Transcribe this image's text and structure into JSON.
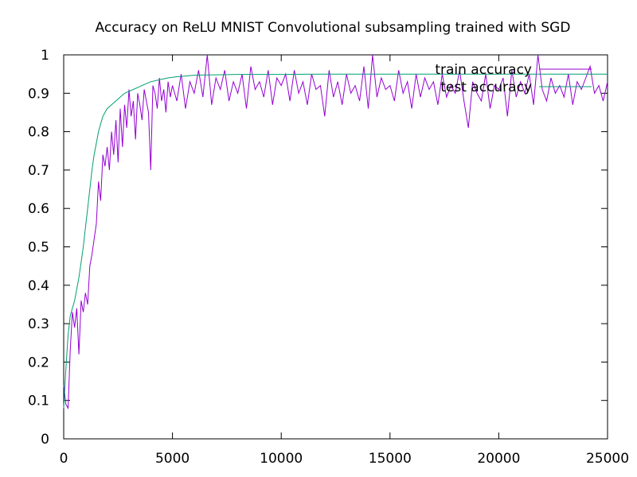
{
  "chart_data": {
    "type": "line",
    "title": "Accuracy on ReLU MNIST Convolutional subsampling trained with SGD",
    "xlabel": "",
    "ylabel": "",
    "xlim": [
      0,
      25000
    ],
    "ylim": [
      0,
      1
    ],
    "x_ticks": [
      0,
      5000,
      10000,
      15000,
      20000,
      25000
    ],
    "y_ticks": [
      0,
      0.1,
      0.2,
      0.3,
      0.4,
      0.5,
      0.6,
      0.7,
      0.8,
      0.9,
      1
    ],
    "grid": false,
    "legend_position": "top-right",
    "series": [
      {
        "name": "train accuracy",
        "color": "#9400d3",
        "x": [
          0,
          100,
          200,
          300,
          400,
          500,
          600,
          700,
          800,
          900,
          1000,
          1100,
          1200,
          1300,
          1400,
          1500,
          1600,
          1700,
          1800,
          1900,
          2000,
          2100,
          2200,
          2300,
          2400,
          2500,
          2600,
          2700,
          2800,
          2900,
          3000,
          3100,
          3200,
          3300,
          3400,
          3500,
          3600,
          3700,
          3800,
          3900,
          4000,
          4100,
          4200,
          4300,
          4400,
          4500,
          4600,
          4700,
          4800,
          4900,
          5000,
          5200,
          5400,
          5600,
          5800,
          6000,
          6200,
          6400,
          6600,
          6800,
          7000,
          7200,
          7400,
          7600,
          7800,
          8000,
          8200,
          8400,
          8600,
          8800,
          9000,
          9200,
          9400,
          9600,
          9800,
          10000,
          10200,
          10400,
          10600,
          10800,
          11000,
          11200,
          11400,
          11600,
          11800,
          12000,
          12200,
          12400,
          12600,
          12800,
          13000,
          13200,
          13400,
          13600,
          13800,
          14000,
          14200,
          14400,
          14600,
          14800,
          15000,
          15200,
          15400,
          15600,
          15800,
          16000,
          16200,
          16400,
          16600,
          16800,
          17000,
          17200,
          17400,
          17600,
          17800,
          18000,
          18200,
          18400,
          18600,
          18800,
          19000,
          19200,
          19400,
          19600,
          19800,
          20000,
          20200,
          20400,
          20600,
          20800,
          21000,
          21200,
          21400,
          21600,
          21800,
          22000,
          22200,
          22400,
          22600,
          22800,
          23000,
          23200,
          23400,
          23600,
          23800,
          24000,
          24200,
          24400,
          24600,
          24800,
          25000
        ],
        "values": [
          0.14,
          0.09,
          0.08,
          0.23,
          0.33,
          0.29,
          0.34,
          0.22,
          0.36,
          0.33,
          0.38,
          0.35,
          0.45,
          0.48,
          0.52,
          0.56,
          0.67,
          0.62,
          0.74,
          0.71,
          0.76,
          0.7,
          0.8,
          0.74,
          0.83,
          0.72,
          0.86,
          0.76,
          0.87,
          0.81,
          0.91,
          0.84,
          0.88,
          0.78,
          0.9,
          0.87,
          0.83,
          0.91,
          0.88,
          0.85,
          0.7,
          0.92,
          0.9,
          0.86,
          0.94,
          0.88,
          0.91,
          0.85,
          0.93,
          0.89,
          0.92,
          0.88,
          0.95,
          0.86,
          0.93,
          0.9,
          0.96,
          0.89,
          1.0,
          0.87,
          0.94,
          0.91,
          0.96,
          0.88,
          0.93,
          0.9,
          0.95,
          0.86,
          0.97,
          0.91,
          0.93,
          0.89,
          0.96,
          0.87,
          0.94,
          0.92,
          0.95,
          0.88,
          0.96,
          0.9,
          0.93,
          0.87,
          0.95,
          0.91,
          0.92,
          0.84,
          0.96,
          0.89,
          0.93,
          0.87,
          0.95,
          0.9,
          0.92,
          0.88,
          0.97,
          0.86,
          1.0,
          0.89,
          0.94,
          0.91,
          0.92,
          0.88,
          0.96,
          0.9,
          0.93,
          0.86,
          0.95,
          0.89,
          0.94,
          0.91,
          0.93,
          0.87,
          0.95,
          0.89,
          0.92,
          0.9,
          0.96,
          0.88,
          0.81,
          0.93,
          0.9,
          0.88,
          0.95,
          0.86,
          0.92,
          0.91,
          0.94,
          0.84,
          0.96,
          0.89,
          0.93,
          0.9,
          0.95,
          0.87,
          1.0,
          0.91,
          0.88,
          0.94,
          0.9,
          0.92,
          0.89,
          0.95,
          0.87,
          0.93,
          0.91,
          0.94,
          0.97,
          0.9,
          0.92,
          0.88,
          0.93
        ],
        "legend": "train accuracy"
      },
      {
        "name": "test accuracy",
        "color": "#009e73",
        "x": [
          0,
          100,
          200,
          300,
          400,
          500,
          600,
          700,
          800,
          900,
          1000,
          1100,
          1200,
          1300,
          1400,
          1500,
          1600,
          1700,
          1800,
          1900,
          2000,
          2200,
          2400,
          2600,
          2800,
          3000,
          3200,
          3400,
          3600,
          3800,
          4000,
          4400,
          4800,
          5200,
          5600,
          6000,
          7000,
          8000,
          10000,
          12000,
          15000,
          18000,
          20000,
          22000,
          25000
        ],
        "values": [
          0.08,
          0.18,
          0.27,
          0.32,
          0.34,
          0.36,
          0.39,
          0.42,
          0.46,
          0.5,
          0.55,
          0.6,
          0.65,
          0.7,
          0.74,
          0.77,
          0.8,
          0.82,
          0.84,
          0.85,
          0.86,
          0.87,
          0.88,
          0.89,
          0.9,
          0.905,
          0.91,
          0.915,
          0.92,
          0.925,
          0.93,
          0.935,
          0.94,
          0.943,
          0.945,
          0.947,
          0.948,
          0.949,
          0.949,
          0.95,
          0.95,
          0.95,
          0.95,
          0.95,
          0.95
        ],
        "legend": "test accuracy"
      }
    ]
  }
}
